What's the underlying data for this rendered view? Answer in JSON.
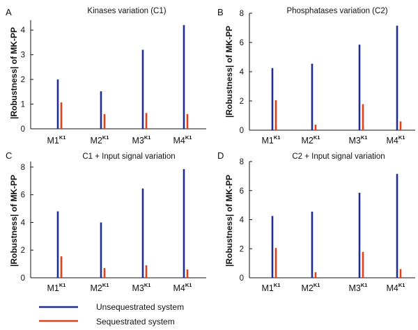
{
  "figure": {
    "legend": {
      "items": [
        {
          "label": "Unsequestrated system",
          "color": "#1f2f8f"
        },
        {
          "label": "Sequestrated system",
          "color": "#e0401c"
        }
      ]
    }
  },
  "chart_data": [
    {
      "panel": "A",
      "type": "bar",
      "title": "Kinases variation (C1)",
      "ylabel": "|Robustness| of MK-PP",
      "categories": [
        {
          "base": "M1",
          "sup": "K1"
        },
        {
          "base": "M2",
          "sup": "K1"
        },
        {
          "base": "M3",
          "sup": "K1"
        },
        {
          "base": "M4",
          "sup": "K1"
        }
      ],
      "yticks": [
        0,
        1,
        2,
        3,
        4
      ],
      "ylim": [
        0,
        4.4
      ],
      "series": [
        {
          "name": "Unsequestrated system",
          "color": "#1f2f8f",
          "values": [
            2.0,
            1.52,
            3.2,
            4.2
          ]
        },
        {
          "name": "Sequestrated system",
          "color": "#e0401c",
          "values": [
            1.07,
            0.6,
            0.64,
            0.6
          ]
        }
      ]
    },
    {
      "panel": "B",
      "type": "bar",
      "title": "Phosphatases variation (C2)",
      "ylabel": "|Robustness| of MK-PP",
      "categories": [
        {
          "base": "M1",
          "sup": "K1"
        },
        {
          "base": "M2",
          "sup": "K1"
        },
        {
          "base": "M3",
          "sup": "K1"
        },
        {
          "base": "M4",
          "sup": "K1"
        }
      ],
      "yticks": [
        0,
        2,
        4,
        6,
        8
      ],
      "ylim": [
        0,
        8
      ],
      "series": [
        {
          "name": "Unsequestrated system",
          "color": "#1f2f8f",
          "values": [
            4.25,
            4.55,
            5.85,
            7.15
          ]
        },
        {
          "name": "Sequestrated system",
          "color": "#e0401c",
          "values": [
            2.05,
            0.38,
            1.78,
            0.6
          ]
        }
      ]
    },
    {
      "panel": "C",
      "type": "bar",
      "title": "C1 + Input signal variation",
      "ylabel": "|Robustness| of MK-PP",
      "categories": [
        {
          "base": "M1",
          "sup": "K1"
        },
        {
          "base": "M2",
          "sup": "K1"
        },
        {
          "base": "M3",
          "sup": "K1"
        },
        {
          "base": "M4",
          "sup": "K1"
        }
      ],
      "yticks": [
        0,
        2,
        4,
        6,
        8
      ],
      "ylim": [
        0,
        8.4
      ],
      "series": [
        {
          "name": "Unsequestrated system",
          "color": "#1f2f8f",
          "values": [
            4.8,
            4.0,
            6.45,
            7.85
          ]
        },
        {
          "name": "Sequestrated system",
          "color": "#e0401c",
          "values": [
            1.55,
            0.7,
            0.9,
            0.6
          ]
        }
      ]
    },
    {
      "panel": "D",
      "type": "bar",
      "title": "C2 + Input signal variation",
      "ylabel": "|Robustness| of MK-PP",
      "categories": [
        {
          "base": "M1",
          "sup": "K1"
        },
        {
          "base": "M2",
          "sup": "K1"
        },
        {
          "base": "M3",
          "sup": "K1"
        },
        {
          "base": "M4",
          "sup": "K1"
        }
      ],
      "yticks": [
        0,
        2,
        4,
        6,
        8
      ],
      "ylim": [
        0,
        8
      ],
      "series": [
        {
          "name": "Unsequestrated system",
          "color": "#1f2f8f",
          "values": [
            4.25,
            4.55,
            5.85,
            7.15
          ]
        },
        {
          "name": "Sequestrated system",
          "color": "#e0401c",
          "values": [
            2.05,
            0.38,
            1.78,
            0.6
          ]
        }
      ]
    }
  ]
}
